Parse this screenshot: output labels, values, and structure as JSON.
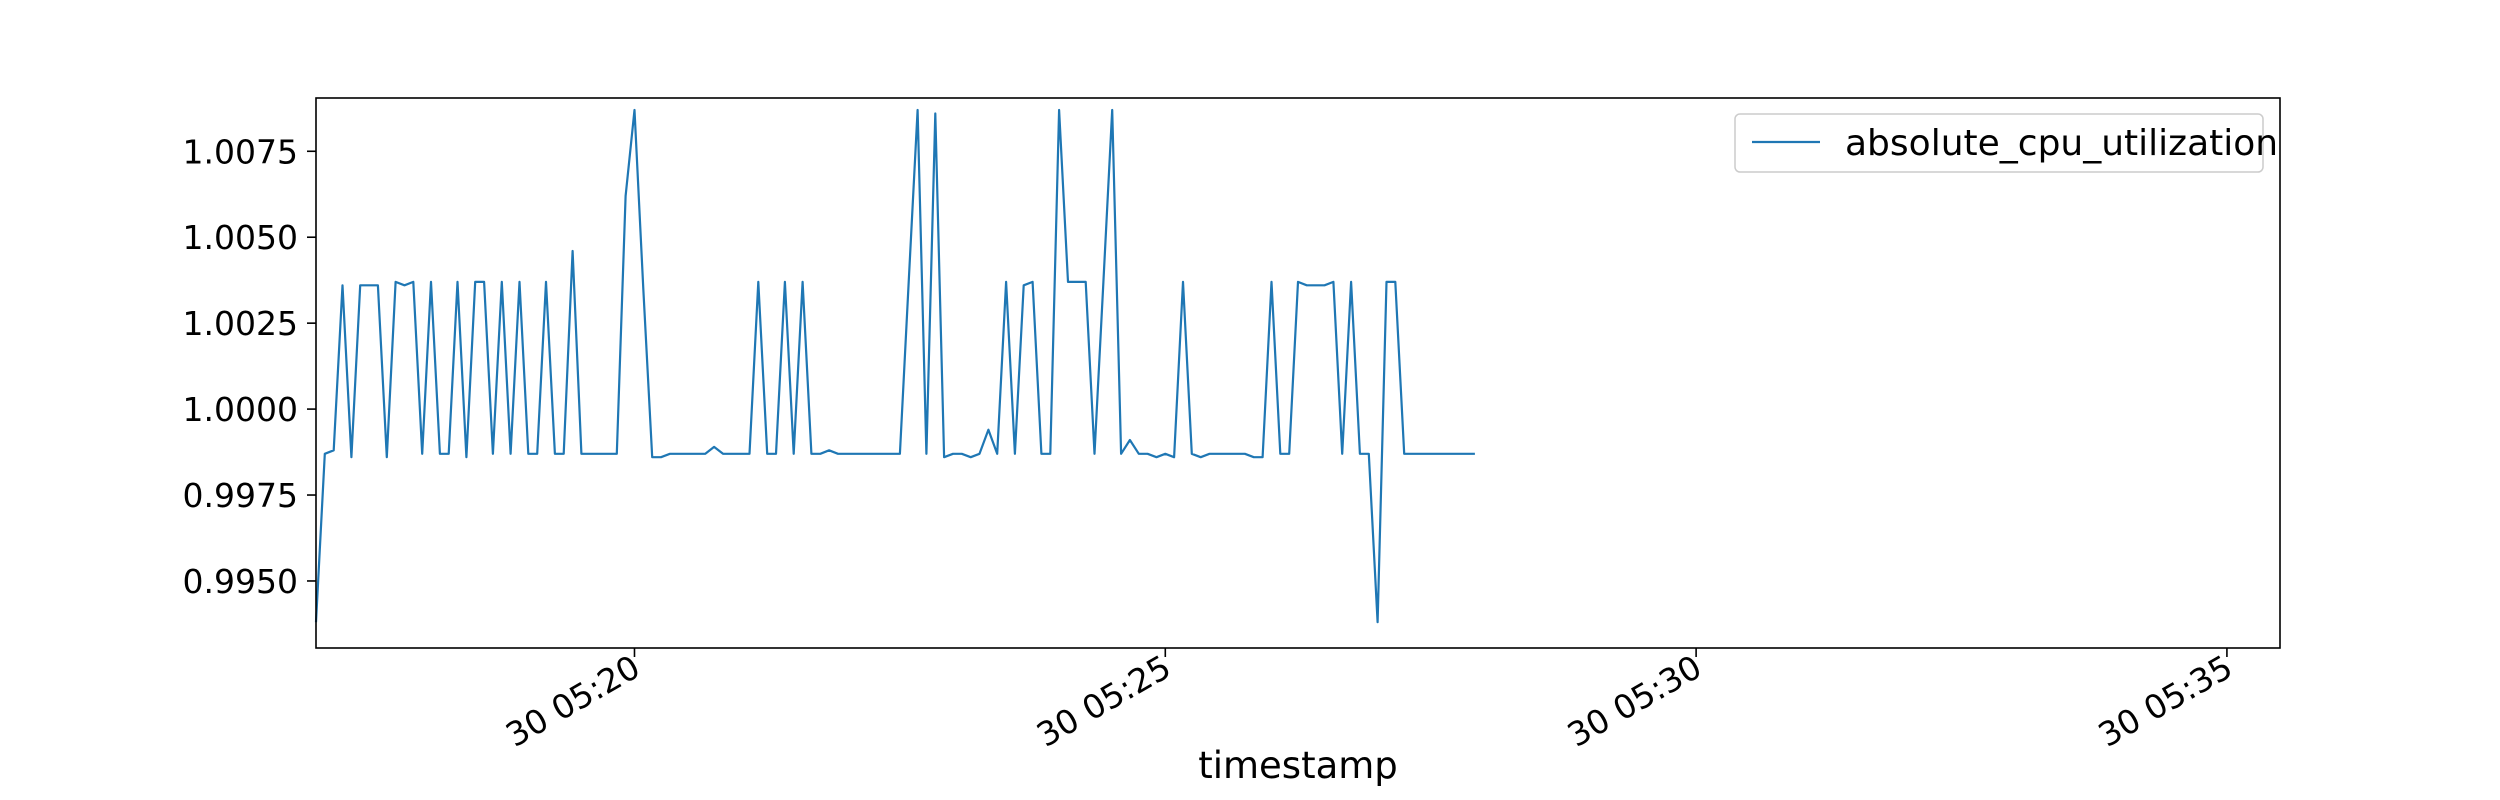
{
  "chart_data": {
    "type": "line",
    "title": "",
    "xlabel": "timestamp",
    "ylabel": "",
    "x_start": "05:17:00",
    "x_step_seconds": 5,
    "x_range": [
      "05:17:00",
      "05:35:05"
    ],
    "xlim": [
      "05:17:00",
      "05:35:30"
    ],
    "ylim": [
      0.99305,
      1.00905
    ],
    "x_ticks": [
      {
        "value": "05:20:00",
        "label": "30 05:20"
      },
      {
        "value": "05:25:00",
        "label": "30 05:25"
      },
      {
        "value": "05:30:00",
        "label": "30 05:30"
      },
      {
        "value": "05:35:00",
        "label": "30 05:35"
      }
    ],
    "y_ticks": [
      {
        "value": 0.995,
        "label": "0.9950"
      },
      {
        "value": 0.9975,
        "label": "0.9975"
      },
      {
        "value": 1.0,
        "label": "1.0000"
      },
      {
        "value": 1.0025,
        "label": "1.0025"
      },
      {
        "value": 1.005,
        "label": "1.0050"
      },
      {
        "value": 1.0075,
        "label": "1.0075"
      }
    ],
    "legend": {
      "position": "top-right",
      "entries": [
        "absolute_cpu_utilization"
      ]
    },
    "grid": false,
    "series": [
      {
        "name": "absolute_cpu_utilization",
        "color": "#1f77b4",
        "values": [
          0.9938,
          0.9987,
          0.9988,
          1.0036,
          0.9986,
          1.0036,
          1.0036,
          1.0036,
          0.9986,
          1.0037,
          1.0036,
          1.0037,
          0.9987,
          1.0037,
          0.9987,
          0.9987,
          1.0037,
          0.9986,
          1.0037,
          1.0037,
          0.9987,
          1.0037,
          0.9987,
          1.0037,
          0.9987,
          0.9987,
          1.0037,
          0.9987,
          0.9987,
          1.0046,
          0.9987,
          0.9987,
          0.9987,
          0.9987,
          0.9987,
          1.0062,
          1.0087,
          1.0035,
          0.9986,
          0.9986,
          0.9987,
          0.9987,
          0.9987,
          0.9987,
          0.9987,
          0.9989,
          0.9987,
          0.9987,
          0.9987,
          0.9987,
          1.0037,
          0.9987,
          0.9987,
          1.0037,
          0.9987,
          1.0037,
          0.9987,
          0.9987,
          0.9988,
          0.9987,
          0.9987,
          0.9987,
          0.9987,
          0.9987,
          0.9987,
          0.9987,
          0.9987,
          1.0037,
          1.0087,
          0.9987,
          1.0086,
          0.9986,
          0.9987,
          0.9987,
          0.9986,
          0.9987,
          0.9994,
          0.9987,
          1.0037,
          0.9987,
          1.0036,
          1.0037,
          0.9987,
          0.9987,
          1.0087,
          1.0037,
          1.0037,
          1.0037,
          0.9987,
          1.0037,
          1.0087,
          0.9987,
          0.9991,
          0.9987,
          0.9987,
          0.9986,
          0.9987,
          0.9986,
          1.0037,
          0.9987,
          0.9986,
          0.9987,
          0.9987,
          0.9987,
          0.9987,
          0.9987,
          0.9986,
          0.9986,
          1.0037,
          0.9987,
          0.9987,
          1.0037,
          1.0036,
          1.0036,
          1.0036,
          1.0037,
          0.9987,
          1.0037,
          0.9987,
          0.9987,
          0.9938,
          1.0037,
          1.0037,
          0.9987,
          0.9987,
          0.9987,
          0.9987,
          0.9987,
          0.9987,
          0.9987,
          0.9987,
          0.9987
        ]
      }
    ]
  }
}
